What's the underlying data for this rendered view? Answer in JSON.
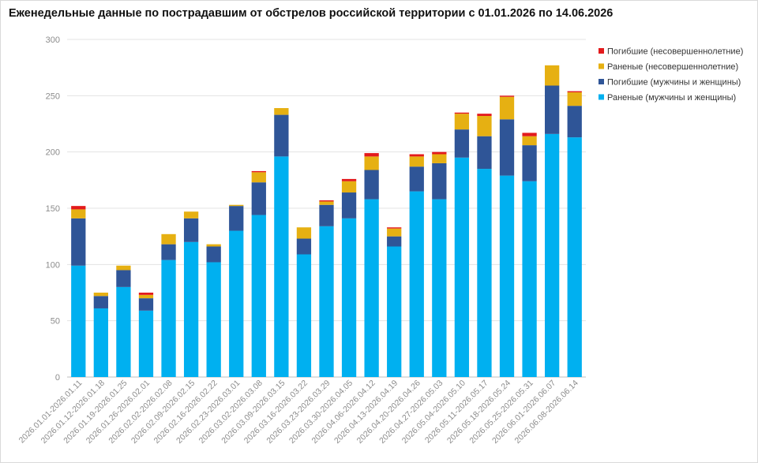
{
  "chart_data": {
    "type": "bar",
    "stacked": true,
    "title": "Еженедельные данные по пострадавшим от обстрелов российской территории с 01.01.2026 по 14.06.2026",
    "xlabel": "",
    "ylabel": "",
    "ylim": [
      0,
      300
    ],
    "yticks": [
      0,
      50,
      100,
      150,
      200,
      250,
      300
    ],
    "grid": true,
    "legend_position": "top-right",
    "categories": [
      "2026.01.01-2026.01.11",
      "2026.01.12-2026.01.18",
      "2026.01.19-2026.01.25",
      "2026.01.26-2026.02.01",
      "2026.02.02-2026.02.08",
      "2026.02.09-2026.02.15",
      "2026.02.16-2026.02.22",
      "2026.02.23-2026.03.01",
      "2026.03.02-2026.03.08",
      "2026.03.09-2026.03.15",
      "2026.03.16-2026.03.22",
      "2026.03.23-2026.03.29",
      "2026.03.30-2026.04.05",
      "2026.04.06-2026.04.12",
      "2026.04.13-2026.04.19",
      "2026.04.20-2026.04.26",
      "2026.04.27-2026.05.03",
      "2026.05.04-2026.05.10",
      "2026.05.11-2026.05.17",
      "2026.05.18-2026.05.24",
      "2026.05.25-2026.05.31",
      "2026.06.01-2026.06.07",
      "2026.06.08-2026.06.14"
    ],
    "series": [
      {
        "name": "Раненые (мужчины и женщины)",
        "color": "#00b0f0",
        "values": [
          99,
          61,
          80,
          59,
          104,
          120,
          102,
          130,
          144,
          196,
          109,
          134,
          141,
          158,
          116,
          165,
          158,
          195,
          185,
          179,
          174,
          216,
          213
        ]
      },
      {
        "name": "Погибшие (мужчины и женщины)",
        "color": "#2f5597",
        "values": [
          42,
          11,
          15,
          11,
          14,
          21,
          14,
          22,
          29,
          37,
          14,
          19,
          23,
          26,
          9,
          22,
          32,
          25,
          29,
          50,
          32,
          43,
          28
        ]
      },
      {
        "name": "Раненые (несовершеннолетние)",
        "color": "#e6b012",
        "values": [
          8,
          3,
          4,
          3,
          9,
          6,
          2,
          1,
          9,
          6,
          10,
          3,
          10,
          12,
          7,
          9,
          8,
          14,
          18,
          20,
          8,
          18,
          12
        ]
      },
      {
        "name": "Погибшие (несовершеннолетние)",
        "color": "#e31a1c",
        "values": [
          3,
          0,
          0,
          2,
          0,
          0,
          0,
          0,
          1,
          0,
          0,
          1,
          2,
          3,
          1,
          2,
          2,
          1,
          2,
          1,
          3,
          0,
          1
        ]
      }
    ],
    "legend_order": [
      "Погибшие (несовершеннолетние)",
      "Раненые (несовершеннолетние)",
      "Погибшие (мужчины и женщины)",
      "Раненые (мужчины и женщины)"
    ]
  }
}
